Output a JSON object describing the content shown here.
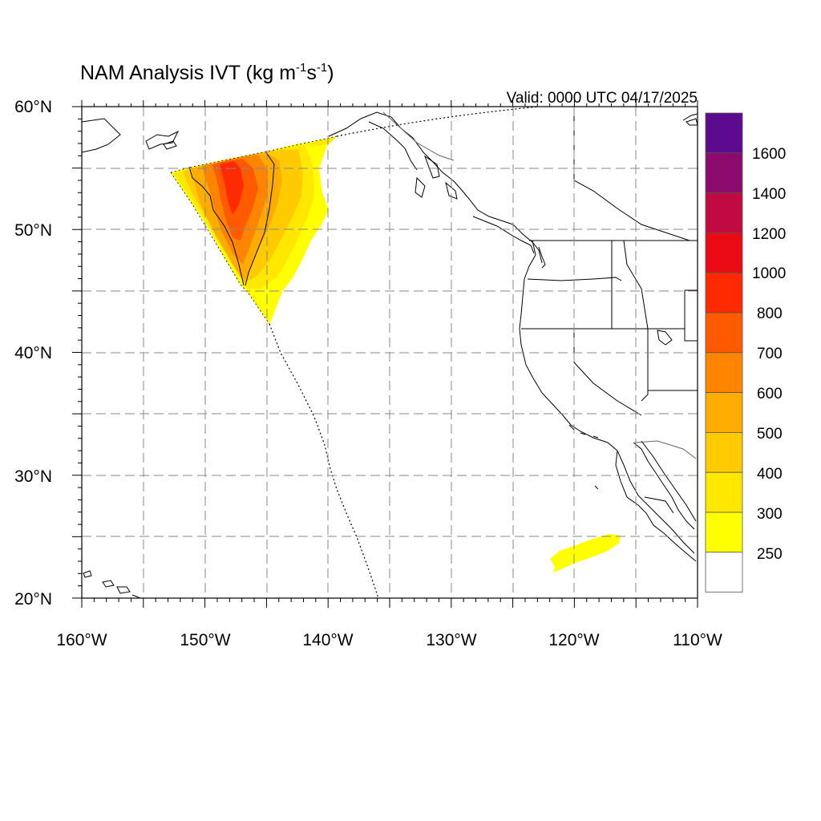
{
  "title": {
    "main": "NAM Analysis IVT (kg m",
    "exp1": "-1",
    "mid": "s",
    "exp2": "-1",
    "close": ")"
  },
  "valid": "Valid: 0000 UTC 04/17/2025",
  "axes": {
    "lon_labels": [
      "160°W",
      "150°W",
      "140°W",
      "130°W",
      "120°W",
      "110°W"
    ],
    "lat_labels": [
      "60°N",
      "50°N",
      "40°N",
      "30°N",
      "20°N"
    ]
  },
  "colorbar": {
    "levels": [
      "1600",
      "1400",
      "1200",
      "1000",
      "800",
      "700",
      "600",
      "500",
      "400",
      "300",
      "250"
    ],
    "colors": [
      "#5c0a8e",
      "#8b0a6b",
      "#c20a42",
      "#ea0a14",
      "#ff2a00",
      "#ff5a00",
      "#ff8500",
      "#ffac00",
      "#ffcb00",
      "#ffe800",
      "#ffff00",
      "#ffffff"
    ]
  }
}
